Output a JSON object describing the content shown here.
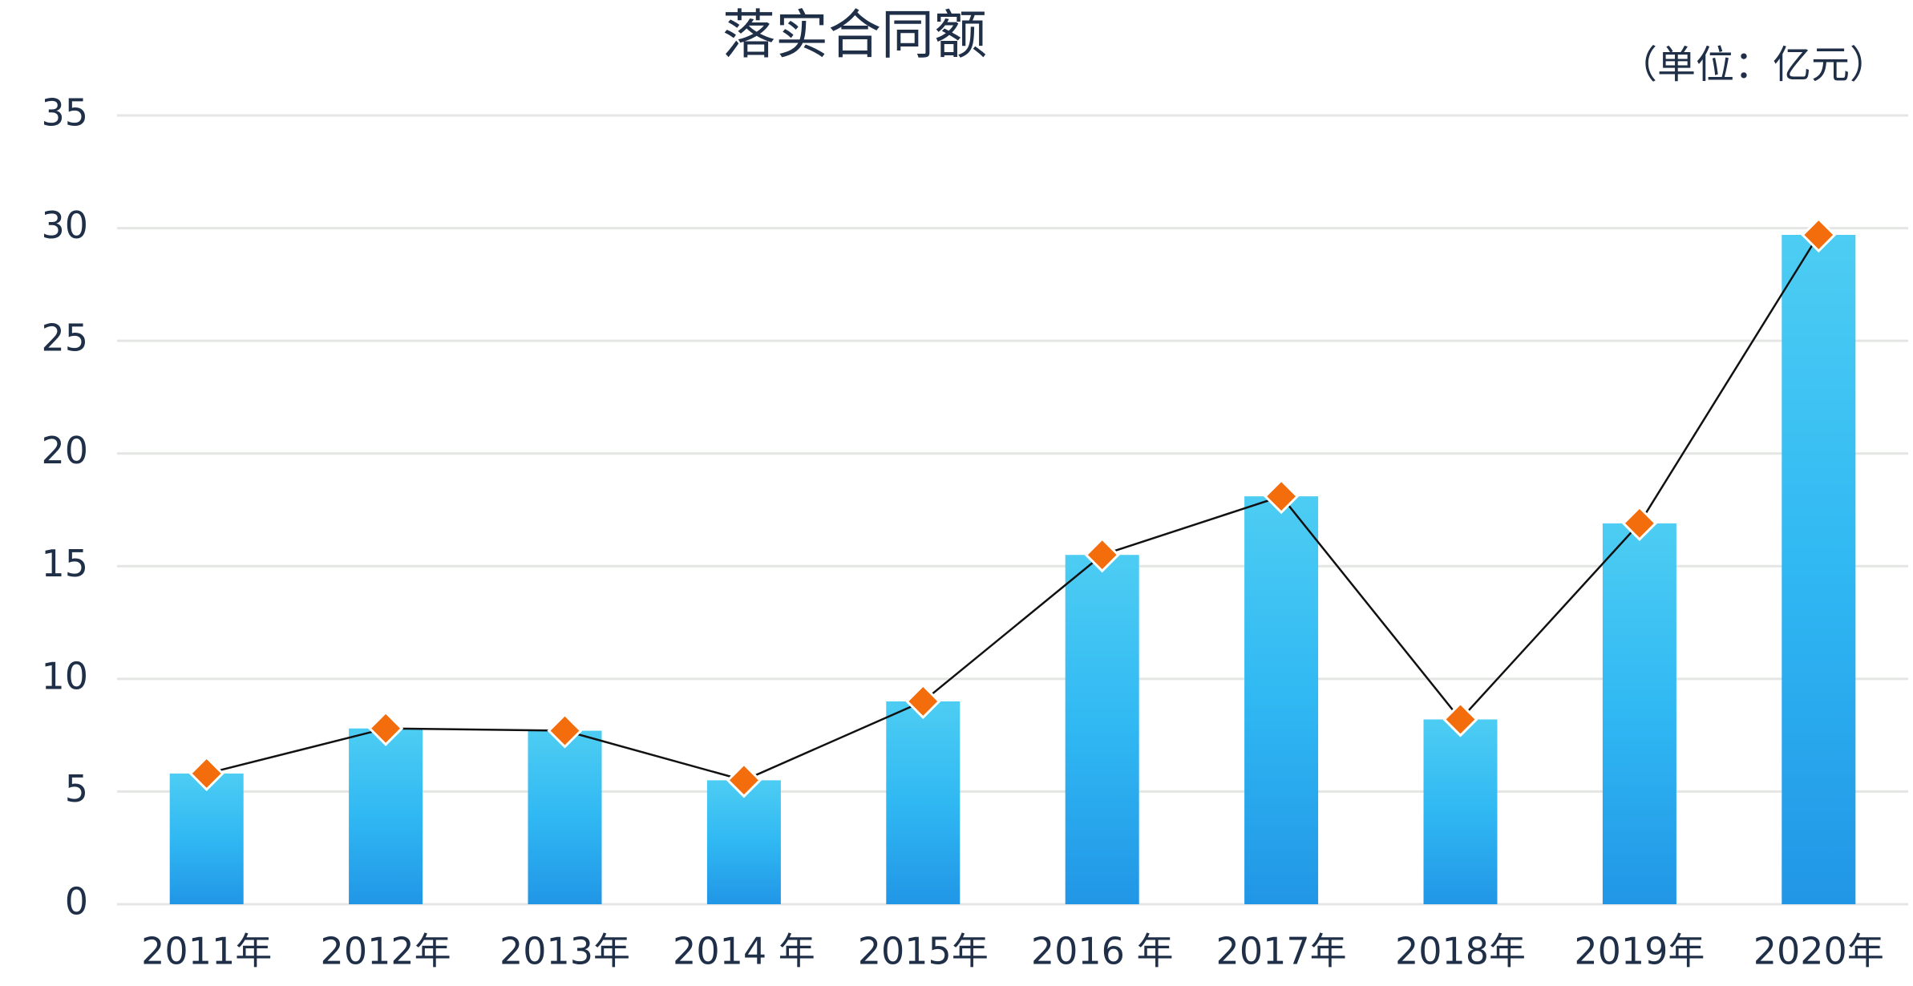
{
  "chart_data": {
    "type": "bar",
    "title": "落实合同额",
    "unit_label": "（单位：亿元）",
    "categories": [
      "2011年",
      "2012年",
      "2013年",
      "2014 年",
      "2015年",
      "2016 年",
      "2017年",
      "2018年",
      "2019年",
      "2020年"
    ],
    "values": [
      5.8,
      7.8,
      7.7,
      5.5,
      9.0,
      15.5,
      18.1,
      8.2,
      16.9,
      29.7
    ],
    "color": "#2ba6ec",
    "line_overlay": true,
    "line_color": "#111111",
    "marker_color": "#f36d0d",
    "ylim": [
      0,
      35
    ],
    "yticks": [
      0,
      5,
      10,
      15,
      20,
      25,
      30,
      35
    ],
    "grid": true
  }
}
